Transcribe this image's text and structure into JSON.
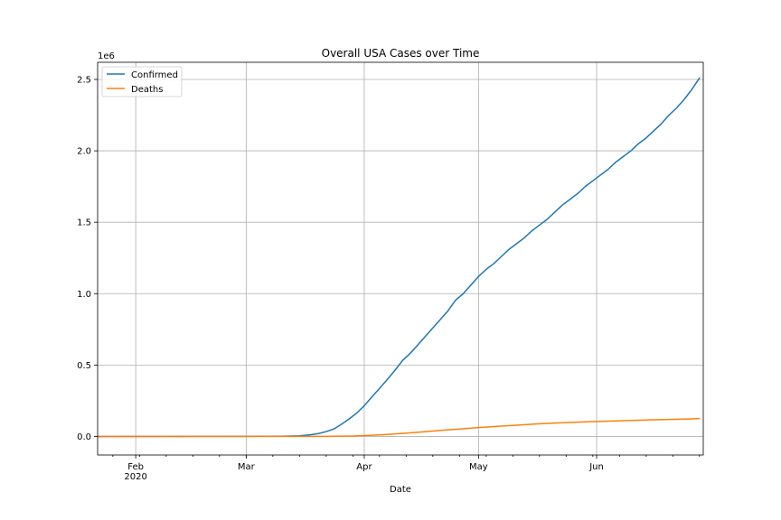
{
  "chart_data": {
    "type": "line",
    "title": "Overall USA Cases over Time",
    "xlabel": "Date",
    "ylabel": "",
    "y_offset_label": "1e6",
    "ylim": [
      -0.13,
      2.62
    ],
    "xlim": [
      "2020-01-22",
      "2020-06-29"
    ],
    "grid": true,
    "legend_position": "top-left",
    "x_major_ticks": [
      {
        "date": "2020-02-01",
        "label": "Feb",
        "sublabel": "2020"
      },
      {
        "date": "2020-03-01",
        "label": "Mar",
        "sublabel": ""
      },
      {
        "date": "2020-04-01",
        "label": "Apr",
        "sublabel": ""
      },
      {
        "date": "2020-05-01",
        "label": "May",
        "sublabel": ""
      },
      {
        "date": "2020-06-01",
        "label": "Jun",
        "sublabel": ""
      }
    ],
    "y_ticks": [
      {
        "value": 0.0,
        "label": "0.0"
      },
      {
        "value": 0.5,
        "label": "0.5"
      },
      {
        "value": 1.0,
        "label": "1.0"
      },
      {
        "value": 1.5,
        "label": "1.5"
      },
      {
        "value": 2.0,
        "label": "2.0"
      },
      {
        "value": 2.5,
        "label": "2.5"
      }
    ],
    "series": [
      {
        "name": "Confirmed",
        "color": "#1f77b4",
        "points": [
          [
            "2020-01-22",
            0
          ],
          [
            "2020-03-01",
            0.0001
          ],
          [
            "2020-03-10",
            0.001
          ],
          [
            "2020-03-15",
            0.004
          ],
          [
            "2020-03-18",
            0.012
          ],
          [
            "2020-03-20",
            0.02
          ],
          [
            "2020-03-22",
            0.034
          ],
          [
            "2020-03-24",
            0.052
          ],
          [
            "2020-03-26",
            0.085
          ],
          [
            "2020-03-28",
            0.122
          ],
          [
            "2020-03-30",
            0.163
          ],
          [
            "2020-04-01",
            0.215
          ],
          [
            "2020-04-03",
            0.276
          ],
          [
            "2020-04-05",
            0.336
          ],
          [
            "2020-04-07",
            0.397
          ],
          [
            "2020-04-09",
            0.461
          ],
          [
            "2020-04-11",
            0.53
          ],
          [
            "2020-04-13",
            0.58
          ],
          [
            "2020-04-15",
            0.639
          ],
          [
            "2020-04-17",
            0.7
          ],
          [
            "2020-04-19",
            0.76
          ],
          [
            "2020-04-21",
            0.82
          ],
          [
            "2020-04-23",
            0.88
          ],
          [
            "2020-04-25",
            0.955
          ],
          [
            "2020-04-27",
            1.0
          ],
          [
            "2020-04-29",
            1.06
          ],
          [
            "2020-05-01",
            1.12
          ],
          [
            "2020-05-03",
            1.17
          ],
          [
            "2020-05-05",
            1.21
          ],
          [
            "2020-05-07",
            1.26
          ],
          [
            "2020-05-09",
            1.31
          ],
          [
            "2020-05-11",
            1.35
          ],
          [
            "2020-05-13",
            1.39
          ],
          [
            "2020-05-15",
            1.44
          ],
          [
            "2020-05-17",
            1.48
          ],
          [
            "2020-05-19",
            1.52
          ],
          [
            "2020-05-21",
            1.57
          ],
          [
            "2020-05-23",
            1.62
          ],
          [
            "2020-05-25",
            1.66
          ],
          [
            "2020-05-27",
            1.7
          ],
          [
            "2020-05-29",
            1.75
          ],
          [
            "2020-05-31",
            1.79
          ],
          [
            "2020-06-02",
            1.83
          ],
          [
            "2020-06-04",
            1.87
          ],
          [
            "2020-06-06",
            1.92
          ],
          [
            "2020-06-08",
            1.96
          ],
          [
            "2020-06-10",
            2.0
          ],
          [
            "2020-06-12",
            2.05
          ],
          [
            "2020-06-14",
            2.09
          ],
          [
            "2020-06-16",
            2.14
          ],
          [
            "2020-06-18",
            2.19
          ],
          [
            "2020-06-20",
            2.25
          ],
          [
            "2020-06-22",
            2.3
          ],
          [
            "2020-06-24",
            2.36
          ],
          [
            "2020-06-26",
            2.43
          ],
          [
            "2020-06-28",
            2.51
          ]
        ]
      },
      {
        "name": "Deaths",
        "color": "#ff7f0e",
        "points": [
          [
            "2020-01-22",
            0
          ],
          [
            "2020-03-15",
            0.0001
          ],
          [
            "2020-03-22",
            0.0005
          ],
          [
            "2020-03-29",
            0.003
          ],
          [
            "2020-04-01",
            0.006
          ],
          [
            "2020-04-06",
            0.012
          ],
          [
            "2020-04-11",
            0.021
          ],
          [
            "2020-04-16",
            0.031
          ],
          [
            "2020-04-21",
            0.042
          ],
          [
            "2020-04-26",
            0.052
          ],
          [
            "2020-05-01",
            0.062
          ],
          [
            "2020-05-06",
            0.071
          ],
          [
            "2020-05-11",
            0.079
          ],
          [
            "2020-05-16",
            0.087
          ],
          [
            "2020-05-21",
            0.094
          ],
          [
            "2020-05-26",
            0.099
          ],
          [
            "2020-05-31",
            0.104
          ],
          [
            "2020-06-05",
            0.108
          ],
          [
            "2020-06-10",
            0.112
          ],
          [
            "2020-06-15",
            0.116
          ],
          [
            "2020-06-20",
            0.119
          ],
          [
            "2020-06-25",
            0.122
          ],
          [
            "2020-06-28",
            0.125
          ]
        ]
      }
    ]
  }
}
